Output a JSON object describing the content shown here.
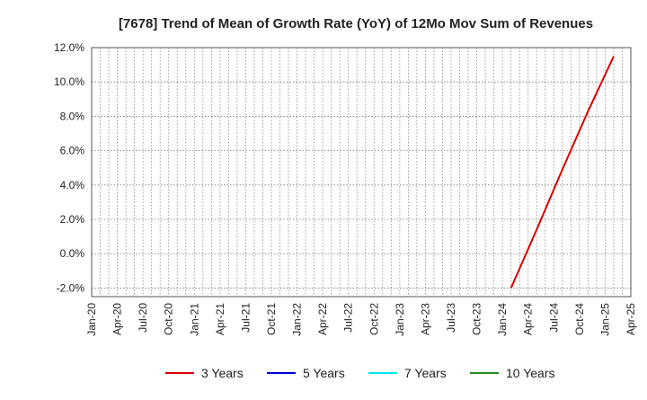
{
  "chart_data": {
    "type": "line",
    "title": "[7678]  Trend of Mean of Growth Rate (YoY) of 12Mo Mov Sum of Revenues",
    "xlabel": "",
    "ylabel": "",
    "ylim": [
      -2.5,
      12.0
    ],
    "y_ticks": [
      12.0,
      10.0,
      8.0,
      6.0,
      4.0,
      2.0,
      0.0,
      -2.0
    ],
    "y_tick_labels": [
      "12.0%",
      "10.0%",
      "8.0%",
      "6.0%",
      "4.0%",
      "2.0%",
      "0.0%",
      "-2.0%"
    ],
    "x_range_months": [
      0,
      63
    ],
    "x_tick_months": [
      0,
      3,
      6,
      9,
      12,
      15,
      18,
      21,
      24,
      27,
      30,
      33,
      36,
      39,
      42,
      45,
      48,
      51,
      54,
      57,
      60,
      63
    ],
    "x_tick_labels": [
      "Jan-20",
      "Apr-20",
      "Jul-20",
      "Oct-20",
      "Jan-21",
      "Apr-21",
      "Jul-21",
      "Oct-21",
      "Jan-22",
      "Apr-22",
      "Jul-22",
      "Oct-22",
      "Jan-23",
      "Apr-23",
      "Jul-23",
      "Oct-23",
      "Jan-24",
      "Apr-24",
      "Jul-24",
      "Oct-24",
      "Jan-25",
      "Apr-25"
    ],
    "grid": true,
    "legend_position": "bottom",
    "series": [
      {
        "name": "3 Years",
        "color": "#dd0000",
        "x_months": [
          49,
          52,
          55,
          58,
          61
        ],
        "values": [
          -2.0,
          1.4,
          4.9,
          8.3,
          11.5
        ]
      },
      {
        "name": "5 Years",
        "color": "#0000cc",
        "x_months": [],
        "values": []
      },
      {
        "name": "7 Years",
        "color": "#00e5ee",
        "x_months": [],
        "values": []
      },
      {
        "name": "10 Years",
        "color": "#228b22",
        "x_months": [],
        "values": []
      }
    ]
  }
}
